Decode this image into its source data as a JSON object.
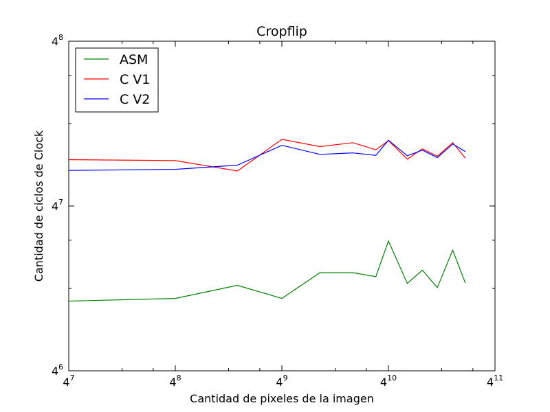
{
  "chart_data": {
    "type": "line",
    "title": "Cropflip",
    "xlabel": "Cantidad de pixeles de la imagen",
    "ylabel": "Cantidad de ciclos de Clock",
    "x_scale": "log4",
    "y_scale": "log4",
    "xlim": [
      16384,
      4194304
    ],
    "ylim": [
      4096,
      65536
    ],
    "x_ticks": [
      {
        "base": "4",
        "exp": "7",
        "value": 16384
      },
      {
        "base": "4",
        "exp": "8",
        "value": 65536
      },
      {
        "base": "4",
        "exp": "9",
        "value": 262144
      },
      {
        "base": "4",
        "exp": "10",
        "value": 1048576
      },
      {
        "base": "4",
        "exp": "11",
        "value": 4194304
      }
    ],
    "y_ticks": [
      {
        "base": "4",
        "exp": "6",
        "value": 4096
      },
      {
        "base": "4",
        "exp": "7",
        "value": 16384
      },
      {
        "base": "4",
        "exp": "8",
        "value": 65536
      }
    ],
    "x": [
      16384,
      65536,
      147000,
      262144,
      430000,
      660000,
      890000,
      1048576,
      1340000,
      1630000,
      1980000,
      2420000,
      2850000
    ],
    "series": [
      {
        "name": "ASM",
        "color": "#008000",
        "values": [
          7360,
          7530,
          8410,
          7530,
          9350,
          9350,
          9050,
          12200,
          8540,
          9550,
          8250,
          11300,
          8570
        ]
      },
      {
        "name": "C V1",
        "color": "#ff0000",
        "values": [
          24200,
          24000,
          22000,
          28700,
          27000,
          27900,
          26300,
          28400,
          24300,
          26500,
          24900,
          27900,
          24500
        ]
      },
      {
        "name": "C V2",
        "color": "#0000ff",
        "values": [
          22100,
          22300,
          23100,
          27300,
          25300,
          25600,
          25100,
          28500,
          25000,
          26200,
          24600,
          27600,
          25900
        ]
      }
    ],
    "grid": false,
    "legend_position": "top-left"
  }
}
